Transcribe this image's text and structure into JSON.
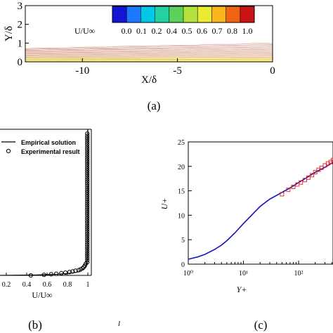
{
  "figure": {
    "panel_labels": [
      "(a)",
      "(b)",
      "(c)"
    ],
    "stray_mark": "l"
  },
  "chart_data": [
    {
      "panel": "(a)",
      "type": "heatmap",
      "xlabel": "X/δ",
      "ylabel": "Y/δ",
      "xlim": [
        -13,
        0
      ],
      "ylim": [
        0,
        3
      ],
      "x_ticks": [
        "-10",
        "-5",
        "0"
      ],
      "x_tick_values": [
        -10,
        -5,
        0
      ],
      "y_ticks": [
        "0",
        "1",
        "2",
        "3"
      ],
      "y_tick_values": [
        0,
        1,
        2,
        3
      ],
      "colorbar": {
        "label": "U/U∞",
        "ticks": [
          "0.0",
          "0.1",
          "0.2",
          "0.4",
          "0.5",
          "0.6",
          "0.7",
          "0.8",
          "1.0"
        ],
        "colors": [
          "#1414d2",
          "#1e78ff",
          "#00c8e6",
          "#22d2a0",
          "#5ad25a",
          "#b4e13c",
          "#ebeb32",
          "#fab41e",
          "#f06414",
          "#c81414"
        ]
      },
      "boundary_layer_thickness": {
        "x": [
          -13,
          0
        ],
        "y": [
          0.75,
          1.05
        ]
      },
      "grid": false
    },
    {
      "panel": "(b)",
      "type": "scatter",
      "xlabel": "U/U∞",
      "x_ticks": [
        "0.2",
        "0.4",
        "0.6",
        "0.8",
        "1"
      ],
      "x_tick_values": [
        0.2,
        0.4,
        0.6,
        0.8,
        1.0
      ],
      "xlim": [
        0.1,
        1.0
      ],
      "legend": {
        "placement": "top-left",
        "entries": [
          "Empirical solution",
          "Experimental result"
        ]
      },
      "series": [
        {
          "name": "Empirical solution",
          "style": "line",
          "x": [
            0.1,
            0.5,
            0.7,
            0.8,
            0.88,
            0.93,
            0.96,
            0.98,
            0.99,
            0.995,
            0.998,
            1.0,
            1.0
          ],
          "y": [
            0.0,
            0.003,
            0.008,
            0.013,
            0.02,
            0.03,
            0.045,
            0.06,
            0.08,
            0.12,
            0.2,
            0.5,
            1.0
          ]
        },
        {
          "name": "Experimental result",
          "style": "markers",
          "x": [
            0.44,
            0.57,
            0.64,
            0.69,
            0.74,
            0.78,
            0.82,
            0.85,
            0.88,
            0.91,
            0.93,
            0.95,
            0.96,
            0.97,
            0.98
          ],
          "y": [
            0.0,
            0.004,
            0.008,
            0.011,
            0.015,
            0.019,
            0.023,
            0.027,
            0.032,
            0.036,
            0.042,
            0.049,
            0.057,
            0.066,
            0.08
          ]
        }
      ],
      "upper_points": {
        "x": 0.995,
        "y_start": 0.09,
        "y_end": 0.97,
        "count": 60
      },
      "grid": false
    },
    {
      "panel": "(c)",
      "type": "scatter",
      "xlabel": "Y+",
      "ylabel": "U+",
      "x_scale": "log",
      "xlim": [
        1,
        420
      ],
      "ylim": [
        0,
        25
      ],
      "x_ticks": [
        "10⁰",
        "10¹",
        "10²"
      ],
      "x_tick_values": [
        1,
        10,
        100
      ],
      "y_ticks": [
        "0",
        "5",
        "10",
        "15",
        "20",
        "25"
      ],
      "y_tick_values": [
        0,
        5,
        10,
        15,
        20,
        25
      ],
      "series": [
        {
          "style": "line",
          "color": "#1010c0",
          "x": [
            1,
            1.5,
            2,
            3,
            4,
            5,
            7,
            10,
            14,
            20,
            30,
            45,
            70,
            100,
            150,
            200,
            300,
            420
          ],
          "y": [
            1.0,
            1.5,
            2.0,
            3.0,
            3.9,
            4.8,
            6.4,
            8.3,
            10.0,
            11.8,
            13.3,
            14.4,
            15.6,
            16.7,
            17.9,
            18.8,
            19.8,
            20.8
          ]
        },
        {
          "style": "markers",
          "color": "#e02020",
          "x": [
            50,
            65,
            80,
            95,
            110,
            130,
            150,
            175,
            200,
            230,
            260,
            300,
            340,
            380,
            420
          ],
          "y": [
            14.3,
            15.2,
            15.8,
            16.3,
            16.7,
            17.2,
            17.7,
            18.2,
            18.8,
            19.3,
            19.7,
            20.2,
            20.6,
            20.9,
            21.3
          ]
        }
      ],
      "grid": false
    }
  ]
}
